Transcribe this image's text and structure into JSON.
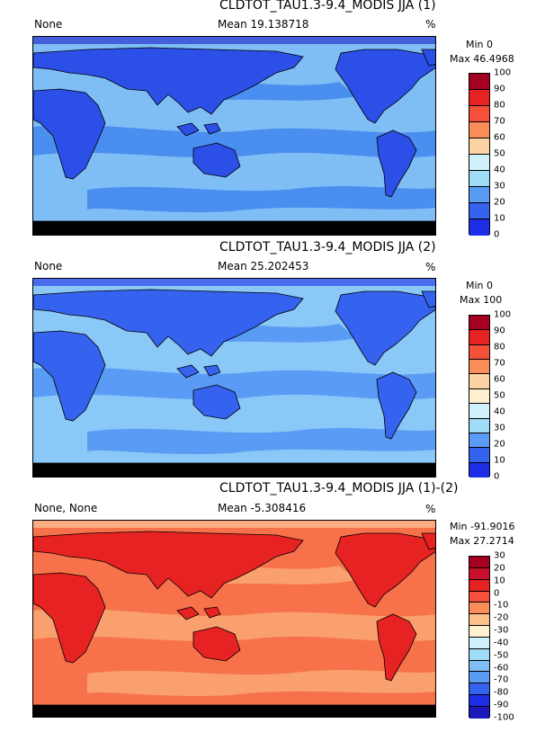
{
  "panels": [
    {
      "title": "CLDTOT_TAU1.3-9.4_MODIS JJA (1)",
      "left_label": "None",
      "mean_label": "Mean 19.138718",
      "unit": "%",
      "min_label": "Min 0",
      "max_label": "Max 46.4968",
      "colorbar": {
        "ticks": [
          "100",
          "90",
          "80",
          "70",
          "60",
          "50",
          "40",
          "30",
          "20",
          "10",
          "0"
        ],
        "colors": [
          "#a50021",
          "#e62222",
          "#f4503a",
          "#fb8e58",
          "#fdd3a6",
          "#d2f2fb",
          "#9edcf7",
          "#5a9cf5",
          "#3562ee",
          "#1e2ee6"
        ]
      },
      "palette": {
        "ocean": "#7fbef5",
        "mid": "#4a8ef0",
        "land": "#2c4fe8",
        "dark": "#1a20c8",
        "ice": "#000000"
      }
    },
    {
      "title": "CLDTOT_TAU1.3-9.4_MODIS JJA (2)",
      "left_label": "None",
      "mean_label": "Mean 25.202453",
      "unit": "%",
      "min_label": "Min 0",
      "max_label": "Max 100",
      "colorbar": {
        "ticks": [
          "100",
          "90",
          "80",
          "70",
          "60",
          "50",
          "40",
          "30",
          "20",
          "10",
          "0"
        ],
        "colors": [
          "#a50021",
          "#e62222",
          "#f4503a",
          "#fb8e58",
          "#fdd3a6",
          "#fff0cf",
          "#d2f2fb",
          "#9edcf7",
          "#5a9cf5",
          "#3562ee",
          "#1e2ee6"
        ]
      },
      "palette": {
        "ocean": "#8ac8f7",
        "mid": "#5a9cf5",
        "land": "#3562ee",
        "dark": "#1e2ee6",
        "ice": "#000000"
      }
    },
    {
      "title": "CLDTOT_TAU1.3-9.4_MODIS JJA (1)-(2)",
      "left_label": "None, None",
      "mean_label": "Mean -5.308416",
      "unit": "%",
      "min_label": "Min -91.9016",
      "max_label": "Max 27.2714",
      "colorbar": {
        "ticks": [
          "30",
          "20",
          "10",
          "0",
          "-10",
          "-20",
          "-30",
          "-40",
          "-50",
          "-60",
          "-70",
          "-80",
          "-90",
          "-100"
        ],
        "colors": [
          "#a50021",
          "#c8102e",
          "#e62222",
          "#f4503a",
          "#fb8e58",
          "#fdc08a",
          "#fff0cf",
          "#d2f2fb",
          "#9edcf7",
          "#7fbef5",
          "#5a9cf5",
          "#3562ee",
          "#1e2ee6",
          "#1a18b8"
        ]
      },
      "palette": {
        "ocean": "#f7724a",
        "mid": "#f9a06e",
        "land": "#e62222",
        "dark": "#fdd3a6",
        "ice": "#000000"
      }
    }
  ]
}
